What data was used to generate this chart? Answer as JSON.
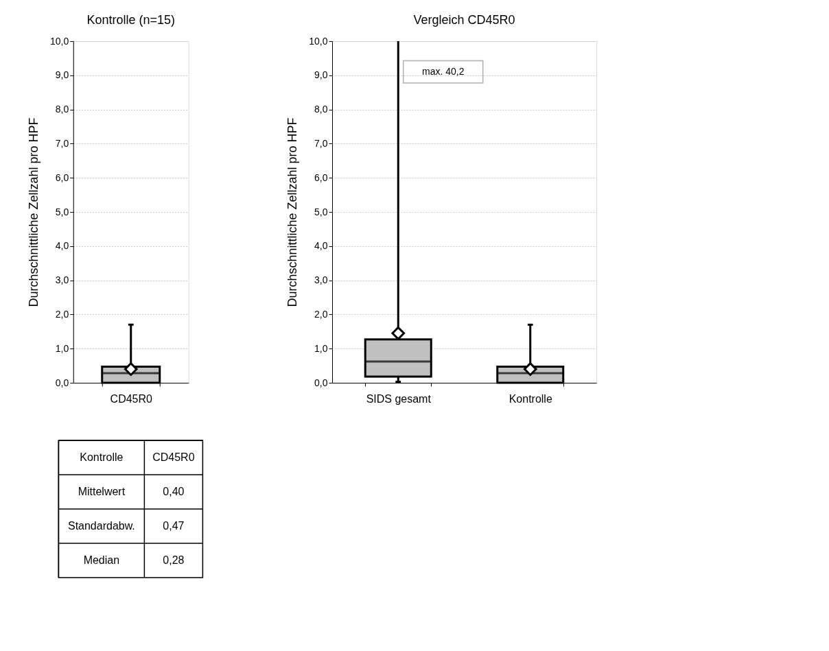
{
  "chart_data": [
    {
      "type": "box",
      "title": "Kontrolle (n=15)",
      "ylabel": "Durchschnittliche Zellzahl pro HPF",
      "categories": [
        "CD45R0"
      ],
      "ylim": [
        0,
        10
      ],
      "yticks": [
        {
          "value": 0,
          "label": "0,0"
        },
        {
          "value": 1,
          "label": "1,0"
        },
        {
          "value": 2,
          "label": "2,0"
        },
        {
          "value": 3,
          "label": "3,0"
        },
        {
          "value": 4,
          "label": "4,0"
        },
        {
          "value": 5,
          "label": "5,0"
        },
        {
          "value": 6,
          "label": "6,0"
        },
        {
          "value": 7,
          "label": "7,0"
        },
        {
          "value": 8,
          "label": "8,0"
        },
        {
          "value": 9,
          "label": "9,0"
        },
        {
          "value": 10,
          "label": "10,0"
        }
      ],
      "grid": "y",
      "marker": "diamond",
      "series": [
        {
          "color": "#c0c0c0",
          "boxes": [
            {
              "low": 0,
              "q1": 0,
              "median": 0.28,
              "q3": 0.47,
              "high": 1.7,
              "mean": 0.4
            }
          ]
        }
      ]
    },
    {
      "type": "other",
      "title": "Kontrolle",
      "categories": [
        "CD45R0"
      ],
      "y_categories": [
        "Mittelwert",
        "Standardabw.",
        "Median"
      ],
      "cell_labels": [
        [
          "0,40"
        ],
        [
          "0,47"
        ],
        [
          "0,28"
        ]
      ]
    },
    {
      "type": "box",
      "title": "Vergleich CD45R0",
      "ylabel": "Durchschnittliche Zellzahl pro HPF",
      "categories": [
        "SIDS gesamt",
        "Kontrolle"
      ],
      "ylim": [
        0,
        10
      ],
      "yticks": [
        {
          "value": 0,
          "label": "0,0"
        },
        {
          "value": 1,
          "label": "1,0"
        },
        {
          "value": 2,
          "label": "2,0"
        },
        {
          "value": 3,
          "label": "3,0"
        },
        {
          "value": 4,
          "label": "4,0"
        },
        {
          "value": 5,
          "label": "5,0"
        },
        {
          "value": 6,
          "label": "6,0"
        },
        {
          "value": 7,
          "label": "7,0"
        },
        {
          "value": 8,
          "label": "8,0"
        },
        {
          "value": 9,
          "label": "9,0"
        },
        {
          "value": 10,
          "label": "10,0"
        }
      ],
      "grid": "y",
      "marker": "diamond",
      "annotations": [
        "max. 40,2"
      ],
      "series": [
        {
          "color": "#c0c0c0",
          "boxes": [
            {
              "low": 0.03,
              "q1": 0.18,
              "median": 0.62,
              "q3": 1.27,
              "high": 40.2,
              "mean": 1.45
            },
            {
              "low": 0,
              "q1": 0,
              "median": 0.28,
              "q3": 0.47,
              "high": 1.7,
              "mean": 0.4
            }
          ]
        }
      ]
    }
  ]
}
